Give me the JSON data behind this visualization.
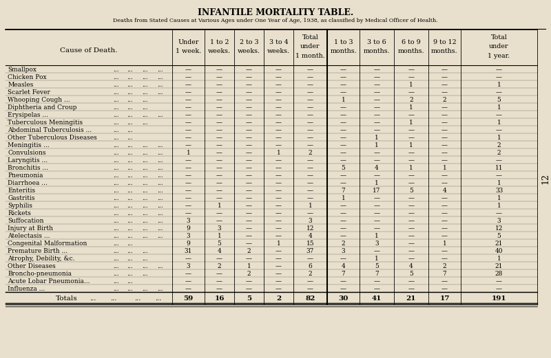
{
  "title": "INFANTILE MORTALITY TABLE.",
  "subtitle": "Deaths from Stated Causes at Various Ages under One Year of Age, 1938, as classified by Medical Officer of Health.",
  "bg_color": "#e8e0cc",
  "col_headers_line1": [
    "Under",
    "1 to 2",
    "2 to 3",
    "3 to 4",
    "Total",
    "1 to 3",
    "3 to 6",
    "6 to 9",
    "9 to 12",
    "Total"
  ],
  "col_headers_line2": [
    "1 week.",
    "weeks.",
    "weeks.",
    "weeks.",
    "under",
    "months.",
    "months.",
    "months.",
    "months.",
    "under"
  ],
  "col_headers_line3": [
    "",
    "",
    "",
    "",
    "1 month.",
    "",
    "",
    "",
    "",
    "1 year."
  ],
  "cause_col_header": "Cause of Death.",
  "causes": [
    "Smallpox   ...   ...   ...   ...",
    "Chicken Pox   ...   ...   ...   ...",
    "Measles   ...   ...   ...   ...",
    "Scarlet Fever   ...   ...   ...   ...",
    "Whooping Cough ...   ...   ...   ...",
    "Diphtheria and Croup   ...   ...   ...",
    "Erysipelas ...   ...   ...   ...   ...",
    "Tuberculous Meningitis   ...   ...   ...",
    "Abdominal Tuberculosis ...   ...   ...",
    "Other Tuberculous Diseases   ...   ...",
    "Meningitis ...   ...   ...   ...   ...",
    "Convulsions   ...   ...   ...   ...",
    "Laryngitis ...   ...   ...   ...   ...",
    "Bronchitis ...   ...   ...   ...   ...",
    "Pneumonia   ...   ...   ...   ...   ...",
    "Diarrhoea ...   ...   ...   ...   ...",
    "Enteritis   ...   ...   ...   ...   ...",
    "Gastritis   ...   ...   ...   ...   ...",
    "Syphilis   ...   ...   ...   ...   ...",
    "Rickets   ...   ...   ...   ...   ...",
    "Suffocation   ...   ...   ...   ...",
    "Injury at Birth   ...   ...   ...   ...",
    "Atelectasis ...   ...   ...   ...   ...",
    "Congenital Malformation   ...   ...",
    "Premature Birth ...   ...   ...   ...",
    "Atrophy, Debility, &c.   ...   ...   ...",
    "Other Diseases   ...   ...   ...   ...",
    "Broncho-pneumonia   ...   ...   ...",
    "Acute Lobar Pneumonia...   ...   ...",
    "Influenza ...   ...   ...   ...   ..."
  ],
  "causes_display": [
    "Smallpox",
    "Chicken Pox",
    "Measles",
    "Scarlet Fever",
    "Whooping Cough ...",
    "Diphtheria and Croup",
    "Erysipelas ...",
    "Tuberculous Meningitis",
    "Abdominal Tuberculosis ...",
    "Other Tuberculous Diseases",
    "Meningitis ...",
    "Convulsions",
    "Laryngitis ...",
    "Bronchitis ...",
    "Pneumonia",
    "Diarrhoea ...",
    "Enteritis",
    "Gastritis",
    "Syphilis",
    "Rickets",
    "Suffocation",
    "Injury at Birth",
    "Atelectasis ...",
    "Congenital Malformation",
    "Premature Birth ...",
    "Atrophy, Debility, &c.",
    "Other Diseases",
    "Broncho-pneumonia",
    "Acute Lobar Pneumonia...",
    "Influenza ..."
  ],
  "cause_dots": [
    [
      "...",
      "...",
      "...",
      "..."
    ],
    [
      "...",
      "...",
      "...",
      "..."
    ],
    [
      "...",
      "...",
      "...",
      "..."
    ],
    [
      "...",
      "...",
      "...",
      "..."
    ],
    [
      "...",
      "...",
      "..."
    ],
    [
      "...",
      "...",
      "..."
    ],
    [
      "...",
      "...",
      "...",
      "..."
    ],
    [
      "...",
      "...",
      "..."
    ],
    [
      "...",
      "..."
    ],
    [
      "...",
      "..."
    ],
    [
      "...",
      "...",
      "...",
      "..."
    ],
    [
      "...",
      "...",
      "...",
      "..."
    ],
    [
      "...",
      "...",
      "...",
      "..."
    ],
    [
      "...",
      "...",
      "...",
      "..."
    ],
    [
      "...",
      "...",
      "...",
      "..."
    ],
    [
      "...",
      "...",
      "...",
      "..."
    ],
    [
      "...",
      "...",
      "...",
      "..."
    ],
    [
      "...",
      "...",
      "...",
      "..."
    ],
    [
      "...",
      "...",
      "...",
      "..."
    ],
    [
      "...",
      "...",
      "...",
      "..."
    ],
    [
      "...",
      "...",
      "...",
      "..."
    ],
    [
      "...",
      "...",
      "...",
      "..."
    ],
    [
      "...",
      "...",
      "...",
      "..."
    ],
    [
      "...",
      "..."
    ],
    [
      "...",
      "...",
      "..."
    ],
    [
      "...",
      "...",
      "..."
    ],
    [
      "...",
      "...",
      "...",
      "..."
    ],
    [
      "...",
      "...",
      "..."
    ],
    [
      "...",
      "..."
    ],
    [
      "...",
      "...",
      "...",
      "..."
    ]
  ],
  "data": [
    [
      "—",
      "—",
      "—",
      "—",
      "—",
      "—",
      "—",
      "—",
      "—",
      "—"
    ],
    [
      "—",
      "—",
      "—",
      "—",
      "—",
      "—",
      "—",
      "—",
      "—",
      "—"
    ],
    [
      "—",
      "—",
      "—",
      "—",
      "—",
      "—",
      "—",
      "1",
      "—",
      "1"
    ],
    [
      "—",
      "—",
      "—",
      "—",
      "—",
      "—",
      "—",
      "—",
      "—",
      "—"
    ],
    [
      "—",
      "—",
      "—",
      "—",
      "—",
      "1",
      "—",
      "2",
      "2",
      "5"
    ],
    [
      "—",
      "—",
      "—",
      "—",
      "—",
      "—",
      "—",
      "1",
      "—",
      "1"
    ],
    [
      "—",
      "—",
      "—",
      "—",
      "—",
      "—",
      "—",
      "—",
      "—",
      "—"
    ],
    [
      "—",
      "—",
      "—",
      "—",
      "—",
      "—",
      "—",
      "1",
      "—",
      "1"
    ],
    [
      "—",
      "—",
      "—",
      "—",
      "—",
      "—",
      "—",
      "—",
      "—",
      "—"
    ],
    [
      "—",
      "—",
      "—",
      "—",
      "—",
      "—",
      "1",
      "—",
      "—",
      "1"
    ],
    [
      "—",
      "—",
      "—",
      "—",
      "—",
      "—",
      "1",
      "1",
      "—",
      "2"
    ],
    [
      "1",
      "—",
      "—",
      "1",
      "2",
      "—",
      "—",
      "—",
      "—",
      "2"
    ],
    [
      "—",
      "—",
      "—",
      "—",
      "—",
      "—",
      "—",
      "—",
      "—",
      "—"
    ],
    [
      "—",
      "—",
      "—",
      "—",
      "—",
      "5",
      "4",
      "1",
      "1",
      "11"
    ],
    [
      "—",
      "—",
      "—",
      "—",
      "—",
      "—",
      "—",
      "—",
      "—",
      "—"
    ],
    [
      "—",
      "—",
      "—",
      "—",
      "—",
      "—",
      "1",
      "—",
      "—",
      "1"
    ],
    [
      "—",
      "—",
      "—",
      "—",
      "—",
      "7",
      "17",
      "5",
      "4",
      "33"
    ],
    [
      "—",
      "—",
      "—",
      "—",
      "—",
      "1",
      "—",
      "—",
      "—",
      "1"
    ],
    [
      "—",
      "1",
      "—",
      "—",
      "1",
      "—",
      "—",
      "—",
      "—",
      "1"
    ],
    [
      "—",
      "—",
      "—",
      "—",
      "—",
      "—",
      "—",
      "—",
      "—",
      "—"
    ],
    [
      "3",
      "—",
      "—",
      "—",
      "3",
      "—",
      "—",
      "—",
      "—",
      "3"
    ],
    [
      "9",
      "3",
      "—",
      "—",
      "12",
      "—",
      "—",
      "—",
      "—",
      "12"
    ],
    [
      "3",
      "1",
      "—",
      "—",
      "4",
      "—",
      "1",
      "—",
      "—",
      "5"
    ],
    [
      "9",
      "5",
      "—",
      "1",
      "15",
      "2",
      "3",
      "—",
      "1",
      "21"
    ],
    [
      "31",
      "4",
      "2",
      "—",
      "37",
      "3",
      "—",
      "—",
      "—",
      "40"
    ],
    [
      "—",
      "—",
      "—",
      "—",
      "—",
      "—",
      "1",
      "—",
      "—",
      "1"
    ],
    [
      "3",
      "2",
      "1",
      "—",
      "6",
      "4",
      "5",
      "4",
      "2",
      "21"
    ],
    [
      "—",
      "—",
      "2",
      "—",
      "2",
      "7",
      "7",
      "5",
      "7",
      "28"
    ],
    [
      "—",
      "—",
      "—",
      "—",
      "—",
      "—",
      "—",
      "—",
      "—",
      "—"
    ],
    [
      "—",
      "—",
      "—",
      "—",
      "—",
      "—",
      "—",
      "—",
      "—",
      "—"
    ]
  ],
  "totals": [
    "59",
    "16",
    "5",
    "2",
    "82",
    "30",
    "41",
    "21",
    "17",
    "191"
  ],
  "totals_label": "Totals ...",
  "totals_dots": [
    "...",
    "...",
    "..."
  ],
  "side_number": "12"
}
